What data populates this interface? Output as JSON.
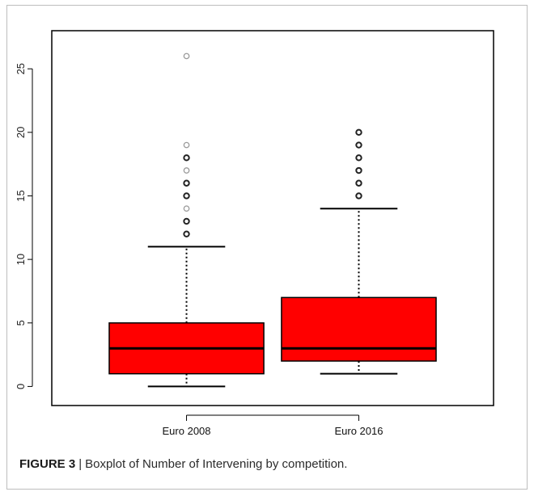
{
  "caption": {
    "label": "FIGURE 3",
    "separator": "|",
    "text": "Boxplot of Number of Intervening by competition."
  },
  "chart_data": {
    "type": "boxplot",
    "title": "",
    "xlabel": "",
    "ylabel": "",
    "ylim": [
      -1.5,
      28
    ],
    "yticks": [
      0,
      5,
      10,
      15,
      20,
      25
    ],
    "y_tick_labels_rotated": true,
    "grid": false,
    "colors": {
      "box_fill": "#ff0000",
      "outline": "#000000",
      "outlier_light": "#9a9a9a",
      "outlier_dark": "#222222"
    },
    "categories": [
      "Euro 2008",
      "Euro 2016"
    ],
    "boxes": [
      {
        "category": "Euro 2008",
        "whisker_low": 0,
        "q1": 1,
        "median": 3,
        "q3": 5,
        "whisker_high": 11,
        "outliers": [
          12,
          13,
          14,
          15,
          16,
          17,
          18,
          19,
          26
        ]
      },
      {
        "category": "Euro 2016",
        "whisker_low": 1,
        "q1": 2,
        "median": 3,
        "q3": 7,
        "whisker_high": 14,
        "outliers": [
          15,
          16,
          17,
          18,
          19,
          20
        ]
      }
    ]
  }
}
